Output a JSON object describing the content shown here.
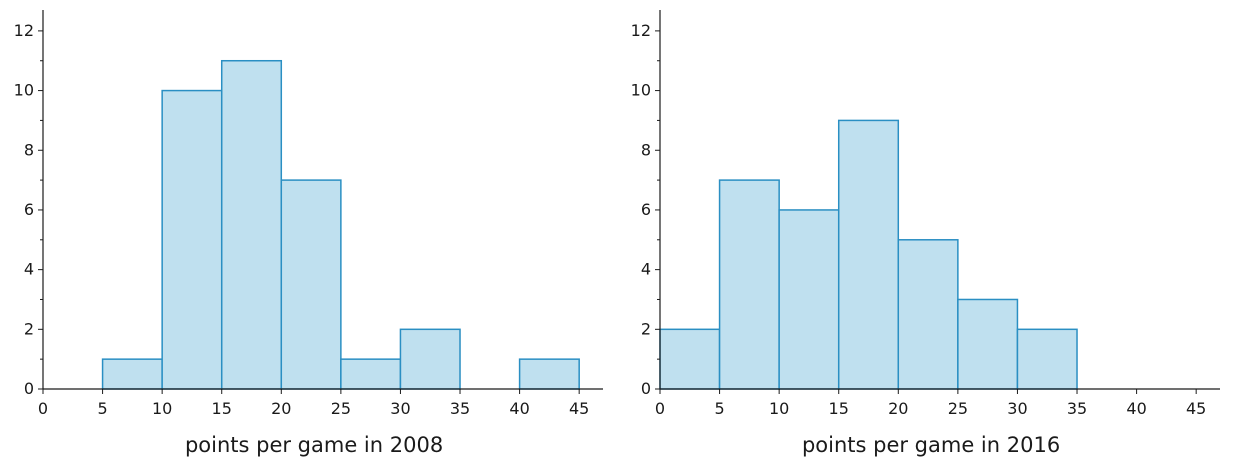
{
  "colors": {
    "bar_fill": "#bfe0ef",
    "bar_stroke": "#2a8fc3",
    "axis": "#1a1a1a"
  },
  "chart_data": [
    {
      "type": "bar",
      "title": "",
      "xlabel": "points per game in 2008",
      "ylabel": "",
      "bin_edges": [
        0,
        5,
        10,
        15,
        20,
        25,
        30,
        35,
        40,
        45
      ],
      "values": [
        0,
        1,
        10,
        11,
        7,
        1,
        2,
        0,
        1
      ],
      "xlim": [
        0,
        47
      ],
      "ylim": [
        0,
        12.7
      ],
      "xticks": [
        0,
        5,
        10,
        15,
        20,
        25,
        30,
        35,
        40,
        45
      ],
      "yticks": [
        0,
        2,
        4,
        6,
        8,
        10,
        12
      ],
      "grid": false
    },
    {
      "type": "bar",
      "title": "",
      "xlabel": "points per game in 2016",
      "ylabel": "",
      "bin_edges": [
        0,
        5,
        10,
        15,
        20,
        25,
        30,
        35,
        40,
        45
      ],
      "values": [
        2,
        7,
        6,
        9,
        5,
        3,
        2,
        0,
        0
      ],
      "xlim": [
        0,
        47
      ],
      "ylim": [
        0,
        12.7
      ],
      "xticks": [
        0,
        5,
        10,
        15,
        20,
        25,
        30,
        35,
        40,
        45
      ],
      "yticks": [
        0,
        2,
        4,
        6,
        8,
        10,
        12
      ],
      "grid": false
    }
  ]
}
